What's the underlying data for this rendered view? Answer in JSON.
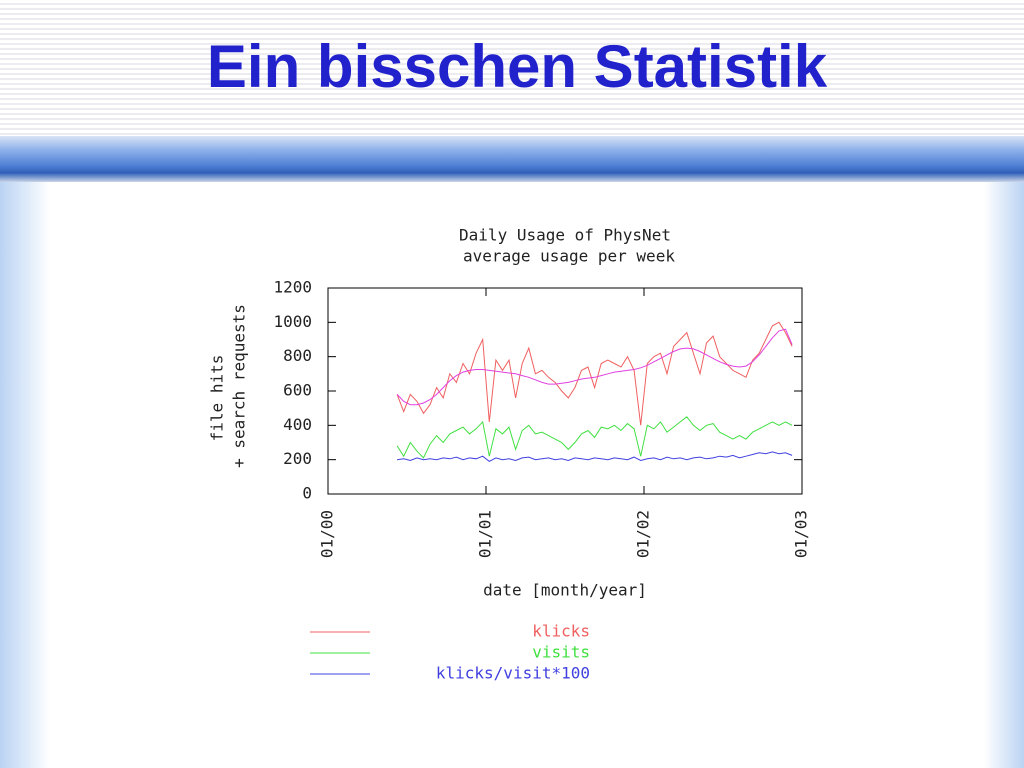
{
  "slide_title": "Ein bisschen Statistik",
  "chart_data": {
    "type": "line",
    "title": "Daily Usage of PhysNet",
    "subtitle": "average usage per week",
    "x_label": "date [month/year]",
    "y_label": [
      "file hits",
      "+ search requests"
    ],
    "xlim": [
      0,
      36
    ],
    "xticks": [
      {
        "value": 0,
        "label": "01/00"
      },
      {
        "value": 12,
        "label": "01/01"
      },
      {
        "value": 24,
        "label": "01/02"
      },
      {
        "value": 36,
        "label": "01/03"
      }
    ],
    "ylim": [
      0,
      1200
    ],
    "yticks": [
      0,
      200,
      400,
      600,
      800,
      1000,
      1200
    ],
    "x": [
      5.25,
      5.75,
      6.25,
      6.75,
      7.25,
      7.75,
      8.25,
      8.75,
      9.25,
      9.75,
      10.25,
      10.75,
      11.25,
      11.75,
      12.25,
      12.75,
      13.25,
      13.75,
      14.25,
      14.75,
      15.25,
      15.75,
      16.25,
      16.75,
      17.25,
      17.75,
      18.25,
      18.75,
      19.25,
      19.75,
      20.25,
      20.75,
      21.25,
      21.75,
      22.25,
      22.75,
      23.25,
      23.75,
      24.25,
      24.75,
      25.25,
      25.75,
      26.25,
      26.75,
      27.25,
      27.75,
      28.25,
      28.75,
      29.25,
      29.75,
      30.25,
      30.75,
      31.25,
      31.75,
      32.25,
      32.75,
      33.25,
      33.75,
      34.25,
      34.75,
      35.25
    ],
    "series": [
      {
        "name": "klicks",
        "color": "#f06060",
        "values": [
          580,
          480,
          580,
          540,
          470,
          520,
          620,
          560,
          700,
          650,
          760,
          700,
          820,
          900,
          420,
          780,
          720,
          780,
          560,
          760,
          850,
          700,
          720,
          680,
          650,
          600,
          560,
          620,
          720,
          740,
          620,
          760,
          780,
          760,
          740,
          800,
          720,
          400,
          760,
          800,
          820,
          700,
          860,
          900,
          940,
          820,
          700,
          880,
          920,
          800,
          760,
          720,
          700,
          680,
          780,
          820,
          900,
          980,
          1000,
          940,
          860
        ]
      },
      {
        "name": "visits",
        "color": "#40e040",
        "values": [
          280,
          220,
          300,
          250,
          210,
          290,
          340,
          300,
          350,
          370,
          390,
          350,
          380,
          420,
          220,
          380,
          350,
          390,
          260,
          370,
          400,
          350,
          360,
          340,
          320,
          300,
          260,
          300,
          350,
          370,
          330,
          390,
          380,
          400,
          370,
          410,
          380,
          220,
          400,
          380,
          420,
          360,
          390,
          420,
          450,
          400,
          370,
          400,
          410,
          360,
          340,
          320,
          340,
          320,
          360,
          380,
          400,
          420,
          400,
          420,
          400
        ]
      },
      {
        "name": "klicks/visit*100",
        "color": "#4040e0",
        "values": [
          200,
          205,
          195,
          210,
          200,
          205,
          200,
          210,
          205,
          215,
          200,
          210,
          205,
          220,
          190,
          210,
          200,
          205,
          195,
          210,
          215,
          200,
          205,
          210,
          200,
          205,
          195,
          210,
          205,
          200,
          210,
          205,
          200,
          210,
          205,
          200,
          215,
          195,
          205,
          210,
          200,
          215,
          205,
          210,
          200,
          210,
          215,
          205,
          210,
          220,
          215,
          225,
          210,
          220,
          230,
          240,
          235,
          245,
          235,
          240,
          225
        ]
      },
      {
        "color": "#e040e0",
        "values": [
          580,
          540,
          520,
          520,
          530,
          550,
          580,
          620,
          660,
          690,
          710,
          720,
          725,
          725,
          720,
          715,
          710,
          705,
          700,
          690,
          680,
          665,
          650,
          640,
          640,
          645,
          650,
          660,
          670,
          675,
          680,
          690,
          700,
          710,
          715,
          720,
          725,
          735,
          750,
          770,
          790,
          810,
          830,
          845,
          850,
          845,
          830,
          810,
          790,
          770,
          755,
          745,
          740,
          745,
          770,
          810,
          860,
          910,
          950,
          960,
          870
        ]
      }
    ]
  }
}
